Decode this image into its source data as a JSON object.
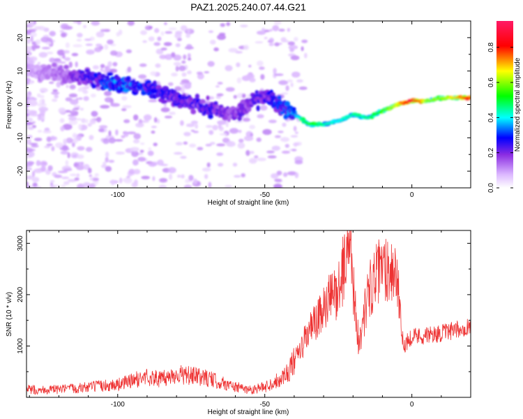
{
  "title": "PAZ1.2025.240.07.44.G21",
  "chart_data": [
    {
      "type": "heatmap",
      "xlabel": "Height of straight line (km)",
      "ylabel": "Frequency (Hz)",
      "xlim": [
        -131,
        20
      ],
      "ylim": [
        -25,
        25
      ],
      "xticks": [
        -100,
        -50,
        0
      ],
      "xtick_labels": [
        "-100",
        "-50",
        "0"
      ],
      "yticks": [
        -20,
        -10,
        0,
        10,
        20
      ],
      "ytick_labels": [
        "-20",
        "-10",
        "0",
        "10",
        "20"
      ],
      "colorbar": {
        "label": "Normalized spectral amplitude",
        "range": [
          0,
          0.95
        ],
        "ticks": [
          0,
          0.2,
          0.4,
          0.6,
          0.8
        ],
        "tick_labels": [
          "0.0",
          "0.2",
          "0.4",
          "0.6",
          "0.8"
        ],
        "colormap": "rainbow"
      },
      "ridge": {
        "x": [
          -131,
          -120,
          -110,
          -100,
          -90,
          -80,
          -70,
          -60,
          -50,
          -45,
          -40,
          -35,
          -30,
          -25,
          -20,
          -15,
          -10,
          -5,
          0,
          5,
          10,
          15,
          20
        ],
        "frequency": [
          10,
          9,
          8,
          6,
          5,
          2,
          -1,
          -3,
          3,
          0,
          -3,
          -6,
          -6,
          -5,
          -3,
          -4,
          -2,
          0,
          1,
          1,
          2,
          2,
          2
        ],
        "amplitude": [
          0.1,
          0.15,
          0.25,
          0.35,
          0.3,
          0.25,
          0.25,
          0.2,
          0.25,
          0.3,
          0.35,
          0.55,
          0.45,
          0.4,
          0.45,
          0.45,
          0.55,
          0.65,
          0.9,
          0.6,
          0.6,
          0.7,
          0.8
        ]
      },
      "grid": false
    },
    {
      "type": "line",
      "xlabel": "Height of straight line (km)",
      "ylabel": "SNR (10 * v/v)",
      "xlim": [
        -131,
        20
      ],
      "ylim": [
        0,
        3250
      ],
      "xticks": [
        -100,
        -50,
        0
      ],
      "xtick_labels": [
        "-100",
        "-50",
        "0"
      ],
      "yticks": [
        1000,
        2000,
        3000
      ],
      "ytick_labels": [
        "1000",
        "2000",
        "3000"
      ],
      "series": [
        {
          "color": "#ee3333",
          "x": [
            -131,
            -120,
            -110,
            -100,
            -90,
            -85,
            -80,
            -70,
            -60,
            -55,
            -50,
            -45,
            -42,
            -40,
            -38,
            -35,
            -32,
            -30,
            -28,
            -25,
            -22,
            -21,
            -20,
            -18,
            -15,
            -13,
            -10,
            -8,
            -5,
            -4,
            -3,
            0,
            5,
            10,
            15,
            20
          ],
          "y": [
            150,
            150,
            200,
            250,
            400,
            350,
            450,
            380,
            200,
            150,
            200,
            350,
            500,
            700,
            900,
            1300,
            1500,
            1700,
            1900,
            2100,
            2800,
            3100,
            2300,
            1000,
            2000,
            2300,
            2500,
            2550,
            2400,
            1500,
            1000,
            1200,
            1200,
            1250,
            1300,
            1400
          ]
        }
      ],
      "grid": false
    }
  ]
}
